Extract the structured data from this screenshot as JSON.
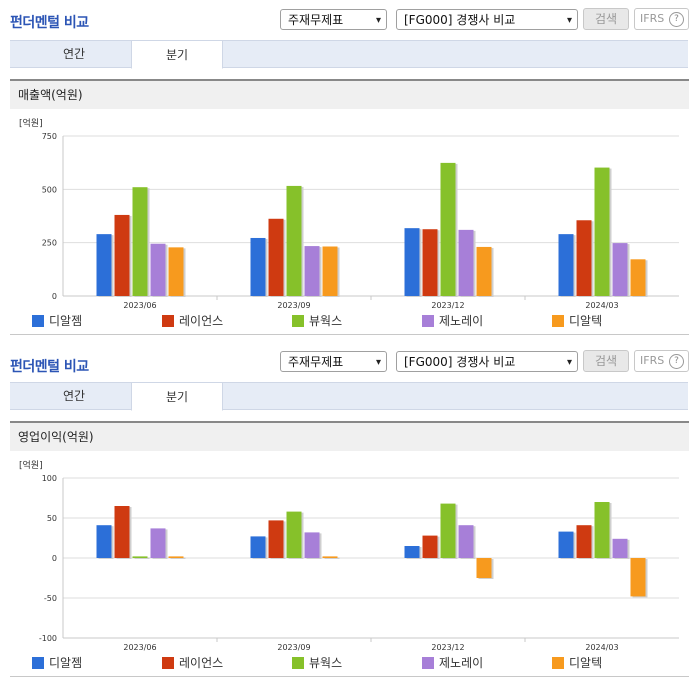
{
  "panels": [
    {
      "title": "펀더멘털 비교",
      "select_statement": "주재무제표",
      "select_group": "[FG000] 경쟁사 비교",
      "search_label": "검색",
      "ifrs_label": "IFRS",
      "ifrs_help": "?",
      "tabs": [
        {
          "label": "연간",
          "active": false
        },
        {
          "label": "분기",
          "active": true
        }
      ],
      "section_title": "매출액(억원)",
      "chart_data": {
        "type": "bar",
        "unit_label": "[억원]",
        "categories": [
          "2023/06",
          "2023/09",
          "2023/12",
          "2024/03"
        ],
        "ylim": [
          0,
          750
        ],
        "yticks": [
          0,
          250,
          500,
          750
        ],
        "grid": true,
        "series": [
          {
            "name": "디알젬",
            "color": "#2c6fd8",
            "values": [
              290,
              272,
              318,
              290
            ]
          },
          {
            "name": "레이언스",
            "color": "#cf3a11",
            "values": [
              380,
              362,
              313,
              355
            ]
          },
          {
            "name": "뷰웍스",
            "color": "#86c12a",
            "values": [
              510,
              516,
              624,
              602
            ]
          },
          {
            "name": "제노레이",
            "color": "#a77fd8",
            "values": [
              245,
              234,
              310,
              248
            ]
          },
          {
            "name": "디알텍",
            "color": "#f79a1e",
            "values": [
              228,
              232,
              230,
              172
            ]
          }
        ]
      }
    },
    {
      "title": "펀더멘털 비교",
      "select_statement": "주재무제표",
      "select_group": "[FG000] 경쟁사 비교",
      "search_label": "검색",
      "ifrs_label": "IFRS",
      "ifrs_help": "?",
      "tabs": [
        {
          "label": "연간",
          "active": false
        },
        {
          "label": "분기",
          "active": true
        }
      ],
      "section_title": "영업이익(억원)",
      "chart_data": {
        "type": "bar",
        "unit_label": "[억원]",
        "categories": [
          "2023/06",
          "2023/09",
          "2023/12",
          "2024/03"
        ],
        "ylim": [
          -100,
          100
        ],
        "yticks": [
          -100,
          -50,
          0,
          50,
          100
        ],
        "grid": true,
        "series": [
          {
            "name": "디알젬",
            "color": "#2c6fd8",
            "values": [
              41,
              27,
              15,
              33
            ]
          },
          {
            "name": "레이언스",
            "color": "#cf3a11",
            "values": [
              65,
              47,
              28,
              41
            ]
          },
          {
            "name": "뷰웍스",
            "color": "#86c12a",
            "values": [
              2,
              58,
              68,
              70
            ]
          },
          {
            "name": "제노레이",
            "color": "#a77fd8",
            "values": [
              37,
              32,
              41,
              24
            ]
          },
          {
            "name": "디알텍",
            "color": "#f79a1e",
            "values": [
              2,
              2,
              -25,
              -48
            ]
          }
        ]
      }
    }
  ]
}
